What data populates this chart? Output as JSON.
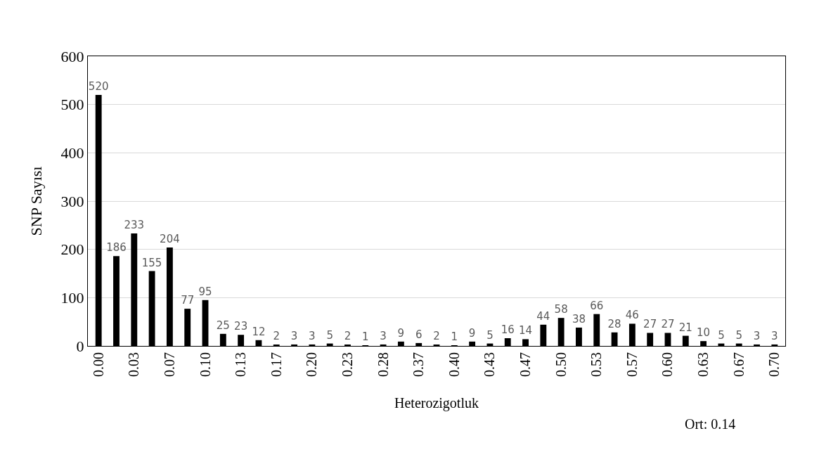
{
  "chart_data": {
    "type": "bar",
    "xlabel": "Heterozigotluk",
    "ylabel": "SNP Sayısı",
    "categories": [
      "0.00",
      null,
      "0.03",
      null,
      "0.07",
      null,
      "0.10",
      null,
      "0.13",
      null,
      "0.17",
      null,
      "0.20",
      null,
      "0.23",
      null,
      "0.28",
      null,
      "0.37",
      null,
      "0.40",
      null,
      "0.43",
      null,
      "0.47",
      null,
      "0.50",
      null,
      "0.53",
      null,
      "0.57",
      null,
      "0.60",
      null,
      "0.63",
      null,
      "0.67",
      null,
      "0.70"
    ],
    "values": [
      520,
      186,
      233,
      155,
      204,
      77,
      95,
      25,
      23,
      12,
      2,
      3,
      3,
      5,
      2,
      1,
      3,
      9,
      6,
      2,
      1,
      9,
      5,
      16,
      14,
      44,
      58,
      38,
      66,
      28,
      46,
      27,
      27,
      21,
      10,
      5,
      5,
      3,
      3
    ],
    "color": "#000000",
    "ylim": [
      0,
      600
    ],
    "yticks": [
      0,
      100,
      200,
      300,
      400,
      500,
      600
    ],
    "grid": "y",
    "data_labels": true,
    "legend": false,
    "annotations": [
      "Ort: 0.14"
    ]
  }
}
